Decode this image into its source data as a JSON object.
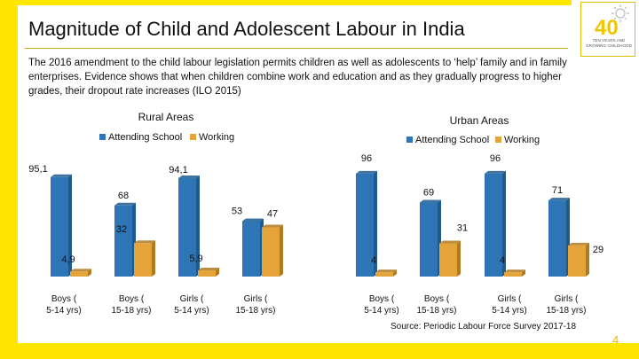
{
  "colors": {
    "accent": "#ffe600",
    "attending": "#2e75b6",
    "working": "#e4a43a"
  },
  "slide": {
    "title": "Magnitude of Child and Adolescent Labour in India",
    "intro": "The 2016 amendment to the child labour legislation permits children as well as adolescents to ‘help’ family and in family enterprises. Evidence shows that when children combine work and education and as they gradually progress to higher grades, their dropout rate increases (ILO 2015)",
    "source": "Source: Periodic Labour Force Survey 2017-18",
    "page_number": "4",
    "logo_numeral": "40",
    "logo_caption": "TEN YEARS AND GROWING CHILDHOOD"
  },
  "chart_data": [
    {
      "type": "bar",
      "title": "Rural Areas",
      "categories": [
        "Boys (5-14 yrs)",
        "Boys (15-18 yrs)",
        "Girls (5-14 yrs)",
        "Girls (15-18 yrs)"
      ],
      "series": [
        {
          "name": "Attending School",
          "values": [
            95.1,
            68,
            94.1,
            53
          ]
        },
        {
          "name": "Working",
          "values": [
            4.9,
            32,
            5.9,
            47
          ]
        }
      ],
      "data_labels": [
        [
          "95,1",
          "68",
          "94,1",
          "53"
        ],
        [
          "4,9",
          "32",
          "5,9",
          "47"
        ]
      ],
      "legend": "top",
      "ylim": [
        0,
        100
      ],
      "grid": false
    },
    {
      "type": "bar",
      "title": "Urban Areas",
      "categories": [
        "Boys (5-14 yrs)",
        "Boys (15-18 yrs)",
        "Girls (5-14 yrs)",
        "Girls (15-18 yrs)"
      ],
      "series": [
        {
          "name": "Attending School",
          "values": [
            96,
            69,
            96,
            71
          ]
        },
        {
          "name": "Working",
          "values": [
            4,
            31,
            4,
            29
          ]
        }
      ],
      "data_labels": [
        [
          "96",
          "69",
          "96",
          "71"
        ],
        [
          "4",
          "31",
          "4",
          "29"
        ]
      ],
      "legend": "top",
      "ylim": [
        0,
        100
      ],
      "grid": false
    }
  ]
}
